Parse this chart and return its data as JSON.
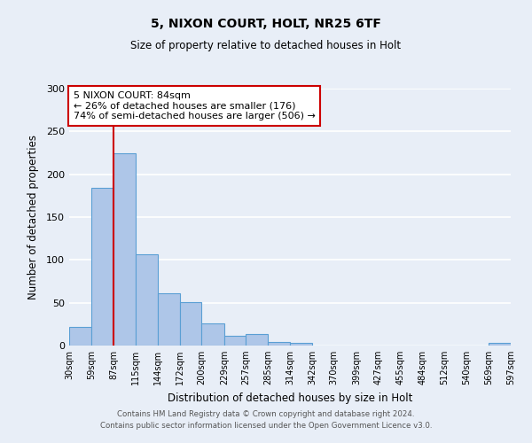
{
  "title": "5, NIXON COURT, HOLT, NR25 6TF",
  "subtitle": "Size of property relative to detached houses in Holt",
  "xlabel": "Distribution of detached houses by size in Holt",
  "ylabel": "Number of detached properties",
  "bar_edges": [
    30,
    59,
    87,
    115,
    144,
    172,
    200,
    229,
    257,
    285,
    314,
    342,
    370,
    399,
    427,
    455,
    484,
    512,
    540,
    569,
    597
  ],
  "bar_heights": [
    22,
    184,
    224,
    107,
    61,
    51,
    26,
    11,
    13,
    4,
    3,
    0,
    0,
    0,
    0,
    0,
    0,
    0,
    0,
    3
  ],
  "tick_labels": [
    "30sqm",
    "59sqm",
    "87sqm",
    "115sqm",
    "144sqm",
    "172sqm",
    "200sqm",
    "229sqm",
    "257sqm",
    "285sqm",
    "314sqm",
    "342sqm",
    "370sqm",
    "399sqm",
    "427sqm",
    "455sqm",
    "484sqm",
    "512sqm",
    "540sqm",
    "569sqm",
    "597sqm"
  ],
  "bar_color": "#aec6e8",
  "bar_edge_color": "#5a9fd4",
  "vline_x": 87,
  "vline_color": "#cc0000",
  "ylim": [
    0,
    300
  ],
  "yticks": [
    0,
    50,
    100,
    150,
    200,
    250,
    300
  ],
  "annotation_title": "5 NIXON COURT: 84sqm",
  "annotation_line1": "← 26% of detached houses are smaller (176)",
  "annotation_line2": "74% of semi-detached houses are larger (506) →",
  "annotation_box_color": "#ffffff",
  "annotation_border_color": "#cc0000",
  "footer_line1": "Contains HM Land Registry data © Crown copyright and database right 2024.",
  "footer_line2": "Contains public sector information licensed under the Open Government Licence v3.0.",
  "bg_color": "#e8eef7",
  "plot_bg_color": "#e8eef7"
}
